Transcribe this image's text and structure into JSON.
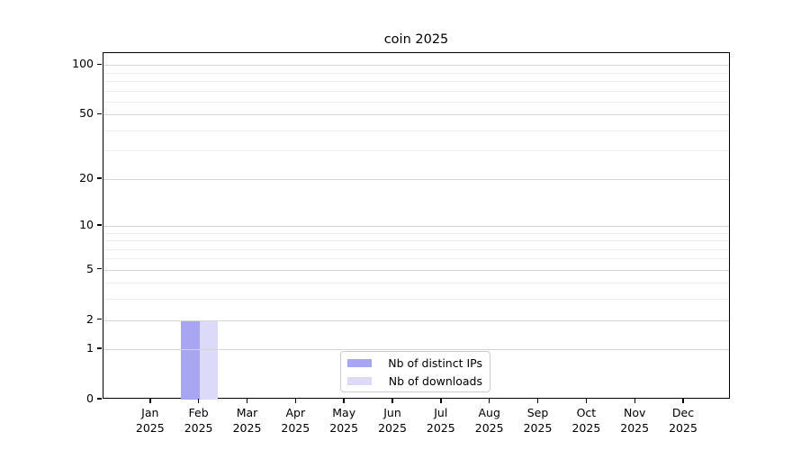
{
  "chart_data": {
    "type": "bar",
    "title": "coin 2025",
    "categories": [
      "Jan",
      "Feb",
      "Mar",
      "Apr",
      "May",
      "Jun",
      "Jul",
      "Aug",
      "Sep",
      "Oct",
      "Nov",
      "Dec"
    ],
    "year": "2025",
    "series": [
      {
        "name": "Nb of distinct IPs",
        "color": "#a8a6f0",
        "values": [
          0,
          2,
          0,
          0,
          0,
          0,
          0,
          0,
          0,
          0,
          0,
          0
        ]
      },
      {
        "name": "Nb of downloads",
        "color": "#dcdaf8",
        "values": [
          0,
          2,
          0,
          0,
          0,
          0,
          0,
          0,
          0,
          0,
          0,
          0
        ]
      }
    ],
    "xlabel": "",
    "ylabel": "",
    "y_scale": "log1p",
    "y_ticks": [
      0,
      1,
      2,
      5,
      10,
      20,
      50,
      100
    ],
    "y_minor_ticks": [
      3,
      4,
      6,
      7,
      8,
      9,
      30,
      40,
      60,
      70,
      80,
      90
    ],
    "ylim": [
      0,
      118
    ],
    "grid": "on",
    "legend_position": "lower center",
    "legend_entries": [
      "Nb of distinct IPs",
      "Nb of downloads"
    ],
    "spine_color": "#000000",
    "major_grid_color": "#d6d6d6",
    "minor_grid_color": "#efefef"
  }
}
